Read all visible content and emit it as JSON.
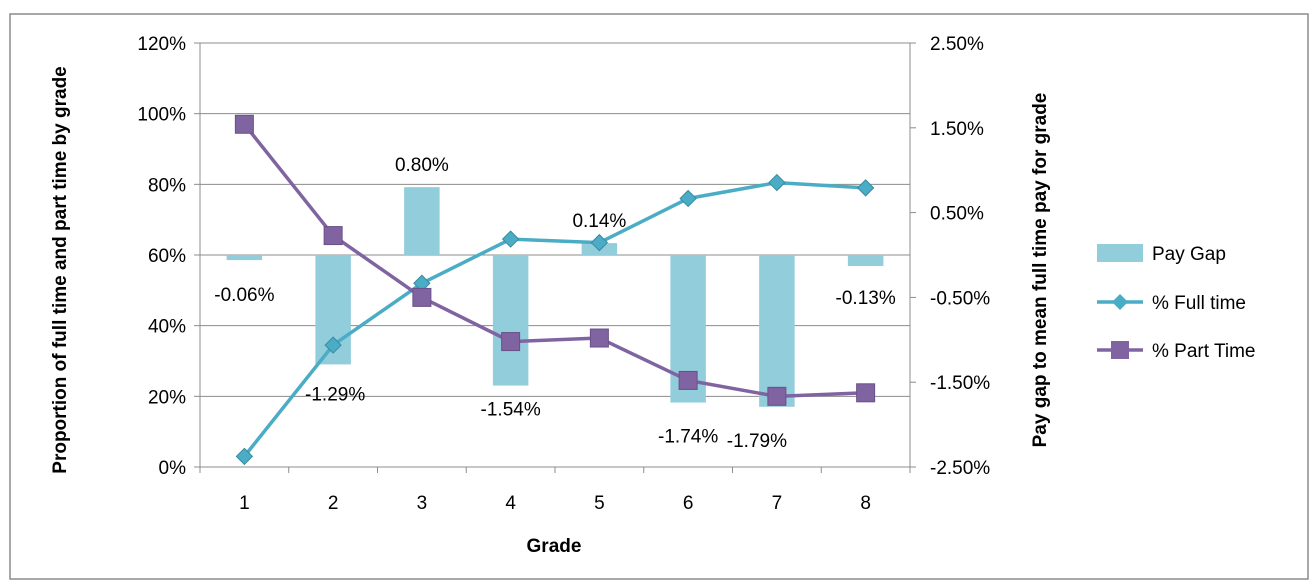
{
  "chart_data": {
    "type": "bar+line",
    "categories": [
      "1",
      "2",
      "3",
      "4",
      "5",
      "6",
      "7",
      "8"
    ],
    "xlabel": "Grade",
    "ylabel_left": "Proportion of full time and part time by grade",
    "ylabel_right": "Pay gap to mean full time pay for grade",
    "ylim_left": [
      0,
      1.2
    ],
    "ylim_right": [
      -0.025,
      0.025
    ],
    "left_ticks": [
      "0%",
      "20%",
      "40%",
      "60%",
      "80%",
      "100%",
      "120%"
    ],
    "left_tick_values": [
      0,
      0.2,
      0.4,
      0.6,
      0.8,
      1.0,
      1.2
    ],
    "right_ticks": [
      "-2.50%",
      "-1.50%",
      "-0.50%",
      "0.50%",
      "1.50%",
      "2.50%"
    ],
    "right_tick_values": [
      -0.025,
      -0.015,
      -0.005,
      0.005,
      0.015,
      0.025
    ],
    "gridlines": true,
    "legend_position": "right",
    "series": [
      {
        "name": "Pay Gap",
        "kind": "bar",
        "axis": "right",
        "color": "#92CDDC",
        "values": [
          -0.0006,
          -0.0129,
          0.008,
          -0.0154,
          0.0014,
          -0.0174,
          -0.0179,
          -0.0013
        ],
        "labels": [
          "-0.06%",
          "-1.29%",
          "0.80%",
          "-1.54%",
          "0.14%",
          "-1.74%",
          "-1.79%",
          "-0.13%"
        ]
      },
      {
        "name": "% Full time",
        "kind": "line",
        "marker": "diamond",
        "axis": "left",
        "color": "#4BACC6",
        "values": [
          0.03,
          0.345,
          0.52,
          0.645,
          0.635,
          0.76,
          0.805,
          0.79
        ]
      },
      {
        "name": "% Part Time",
        "kind": "line",
        "marker": "square",
        "axis": "left",
        "color": "#8064A2",
        "values": [
          0.97,
          0.655,
          0.48,
          0.355,
          0.365,
          0.245,
          0.2,
          0.21
        ]
      }
    ]
  }
}
